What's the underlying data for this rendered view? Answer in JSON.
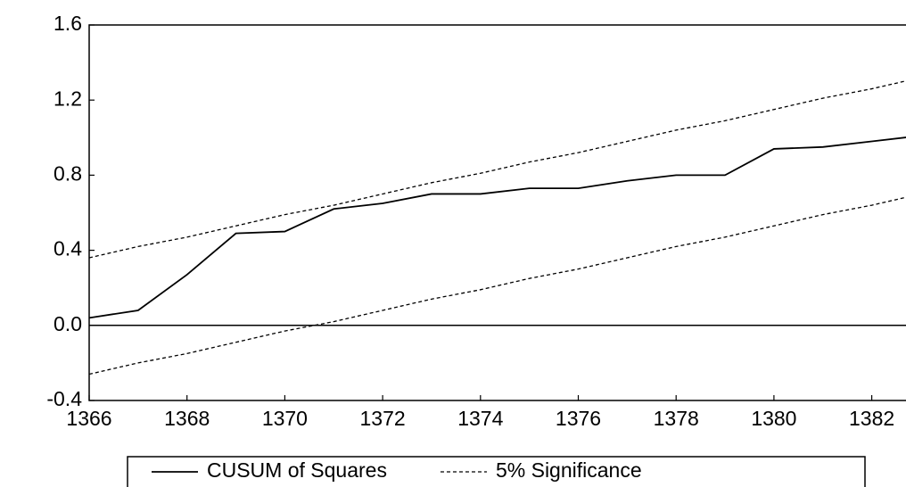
{
  "chart_data": {
    "type": "line",
    "x": [
      1366,
      1367,
      1368,
      1369,
      1370,
      1371,
      1372,
      1373,
      1374,
      1375,
      1376,
      1377,
      1378,
      1379,
      1380,
      1381,
      1382,
      1383
    ],
    "series": [
      {
        "name": "CUSUM of Squares",
        "color": "#000000",
        "dash": "solid",
        "values": [
          0.04,
          0.08,
          0.27,
          0.49,
          0.5,
          0.62,
          0.65,
          0.7,
          0.7,
          0.73,
          0.73,
          0.77,
          0.8,
          0.8,
          0.94,
          0.95,
          0.98,
          1.01
        ]
      },
      {
        "name": "5% Significance",
        "color": "#000000",
        "dash": "dashed",
        "values": [
          0.36,
          0.42,
          0.47,
          0.53,
          0.59,
          0.64,
          0.7,
          0.76,
          0.81,
          0.87,
          0.92,
          0.98,
          1.04,
          1.09,
          1.15,
          1.21,
          1.26,
          1.32
        ]
      },
      {
        "color": "#000000",
        "dash": "dashed",
        "values": [
          -0.26,
          -0.2,
          -0.15,
          -0.09,
          -0.03,
          0.02,
          0.08,
          0.14,
          0.19,
          0.25,
          0.3,
          0.36,
          0.42,
          0.47,
          0.53,
          0.59,
          0.64,
          0.7
        ]
      }
    ],
    "xlim": [
      1366,
      1382.7
    ],
    "xticks": [
      1366,
      1368,
      1370,
      1372,
      1374,
      1376,
      1378,
      1380,
      1382
    ],
    "ylim": [
      -0.4,
      1.6
    ],
    "yticks": [
      {
        "value": -0.4,
        "label": "-0.4"
      },
      {
        "value": 0,
        "label": "0.0"
      },
      0.4,
      0.8,
      1.2,
      1.6
    ],
    "zero_line": true,
    "legend": "bottom"
  }
}
